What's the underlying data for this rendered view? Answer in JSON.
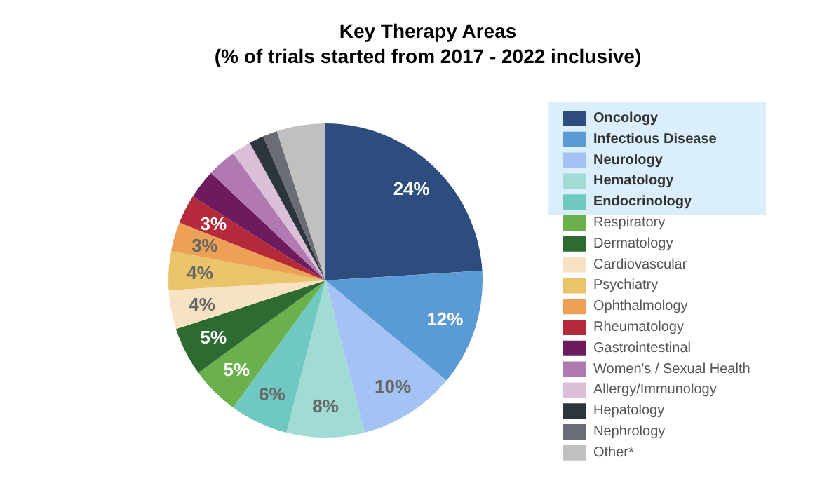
{
  "chart_data": {
    "type": "pie",
    "title": "Key Therapy Areas",
    "subtitle": "(% of trials started from 2017 - 2022 inclusive)",
    "categories": [
      "Oncology",
      "Infectious Disease",
      "Neurology",
      "Hematology",
      "Endocrinology",
      "Respiratory",
      "Dermatology",
      "Cardiovascular",
      "Psychiatry",
      "Ophthalmology",
      "Rheumatology",
      "Gastrointestinal",
      "Women's / Sexual Health",
      "Allergy/Immunology",
      "Hepatology",
      "Nephrology",
      "Other*"
    ],
    "values": [
      24,
      12,
      10,
      8,
      6,
      5,
      5,
      4,
      4,
      3,
      3,
      3,
      3,
      2,
      1.5,
      1.5,
      5
    ],
    "value_labels": [
      "24%",
      "12%",
      "10%",
      "8%",
      "6%",
      "5%",
      "5%",
      "4%",
      "4%",
      "3%",
      "3%",
      null,
      null,
      null,
      null,
      null,
      null
    ],
    "colors": [
      "#2e4d7f",
      "#5b9bd5",
      "#a4c2f4",
      "#a0dcd4",
      "#6fc9c0",
      "#6ab04c",
      "#2e6b33",
      "#f8e2c4",
      "#e9c46a",
      "#eda156",
      "#b52a3a",
      "#6e1a5e",
      "#b07ab0",
      "#dbbfd8",
      "#2c343c",
      "#6a6e74",
      "#c0c0c0"
    ],
    "legend": "right"
  }
}
